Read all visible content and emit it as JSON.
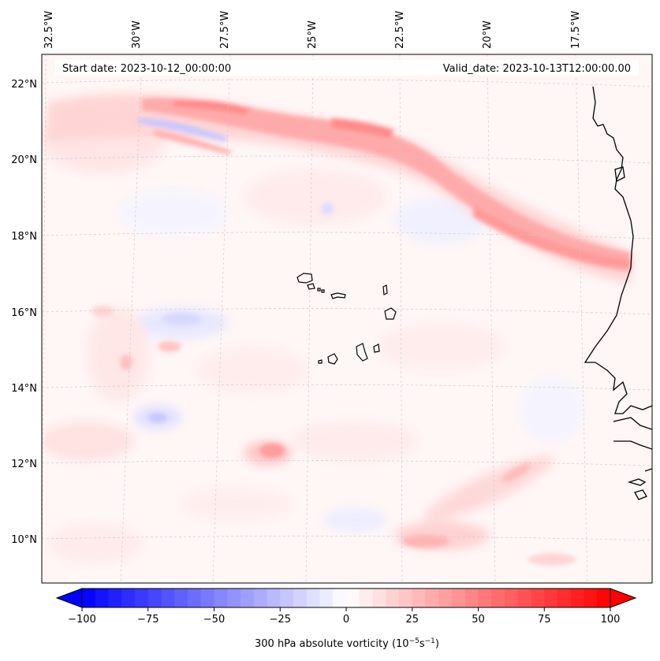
{
  "map": {
    "projection_note": "",
    "lon_labels": [
      "32.5°W",
      "30°W",
      "27.5°W",
      "25°W",
      "22.5°W",
      "20°W",
      "17.5°W"
    ],
    "lat_labels": [
      "22°N",
      "20°N",
      "18°N",
      "16°N",
      "14°N",
      "12°N",
      "10°N"
    ],
    "start_date": "Start date: 2023-10-12_00:00:00",
    "valid_date": "Valid_date: 2023-10-13T12:00:00.00",
    "colors": {
      "positive": "#ff0000",
      "negative": "#0000ff",
      "coast": "#000000",
      "grid": "#c8c8c8"
    }
  },
  "colorbar": {
    "ticks": [
      "−100",
      "−75",
      "−50",
      "−25",
      "0",
      "25",
      "50",
      "75",
      "100"
    ],
    "tick_values": [
      -100,
      -75,
      -50,
      -25,
      0,
      25,
      50,
      75,
      100
    ],
    "vmin": -100,
    "vmax": 100,
    "cmap": "bwr",
    "label_main": "300 hPa absolute vorticity (10",
    "label_exp1": "−5",
    "label_mid": "s",
    "label_exp2": "−1",
    "label_end": ")"
  }
}
